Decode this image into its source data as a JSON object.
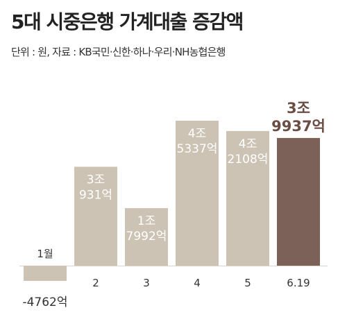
{
  "chart_data": {
    "type": "bar",
    "title": "5대 시중은행 가계대출 증감액",
    "subtitle": "단위 : 원, 자료 : KB국민·신한·하나·우리·NH농협은행",
    "categories": [
      "1월",
      "2",
      "3",
      "4",
      "5",
      "6.19"
    ],
    "values": [
      -4762,
      30931,
      17992,
      45337,
      42108,
      39937
    ],
    "value_labels": [
      [
        "-4762억"
      ],
      [
        "3조",
        "931억"
      ],
      [
        "1조",
        "7992억"
      ],
      [
        "4조",
        "5337억"
      ],
      [
        "4조",
        "2108억"
      ],
      [
        "3조",
        "9937억"
      ]
    ],
    "highlight_index": 5,
    "colors": {
      "bar": "#ccc3b5",
      "highlight": "#7b6158",
      "highlight_label": "#6b4d43"
    }
  }
}
